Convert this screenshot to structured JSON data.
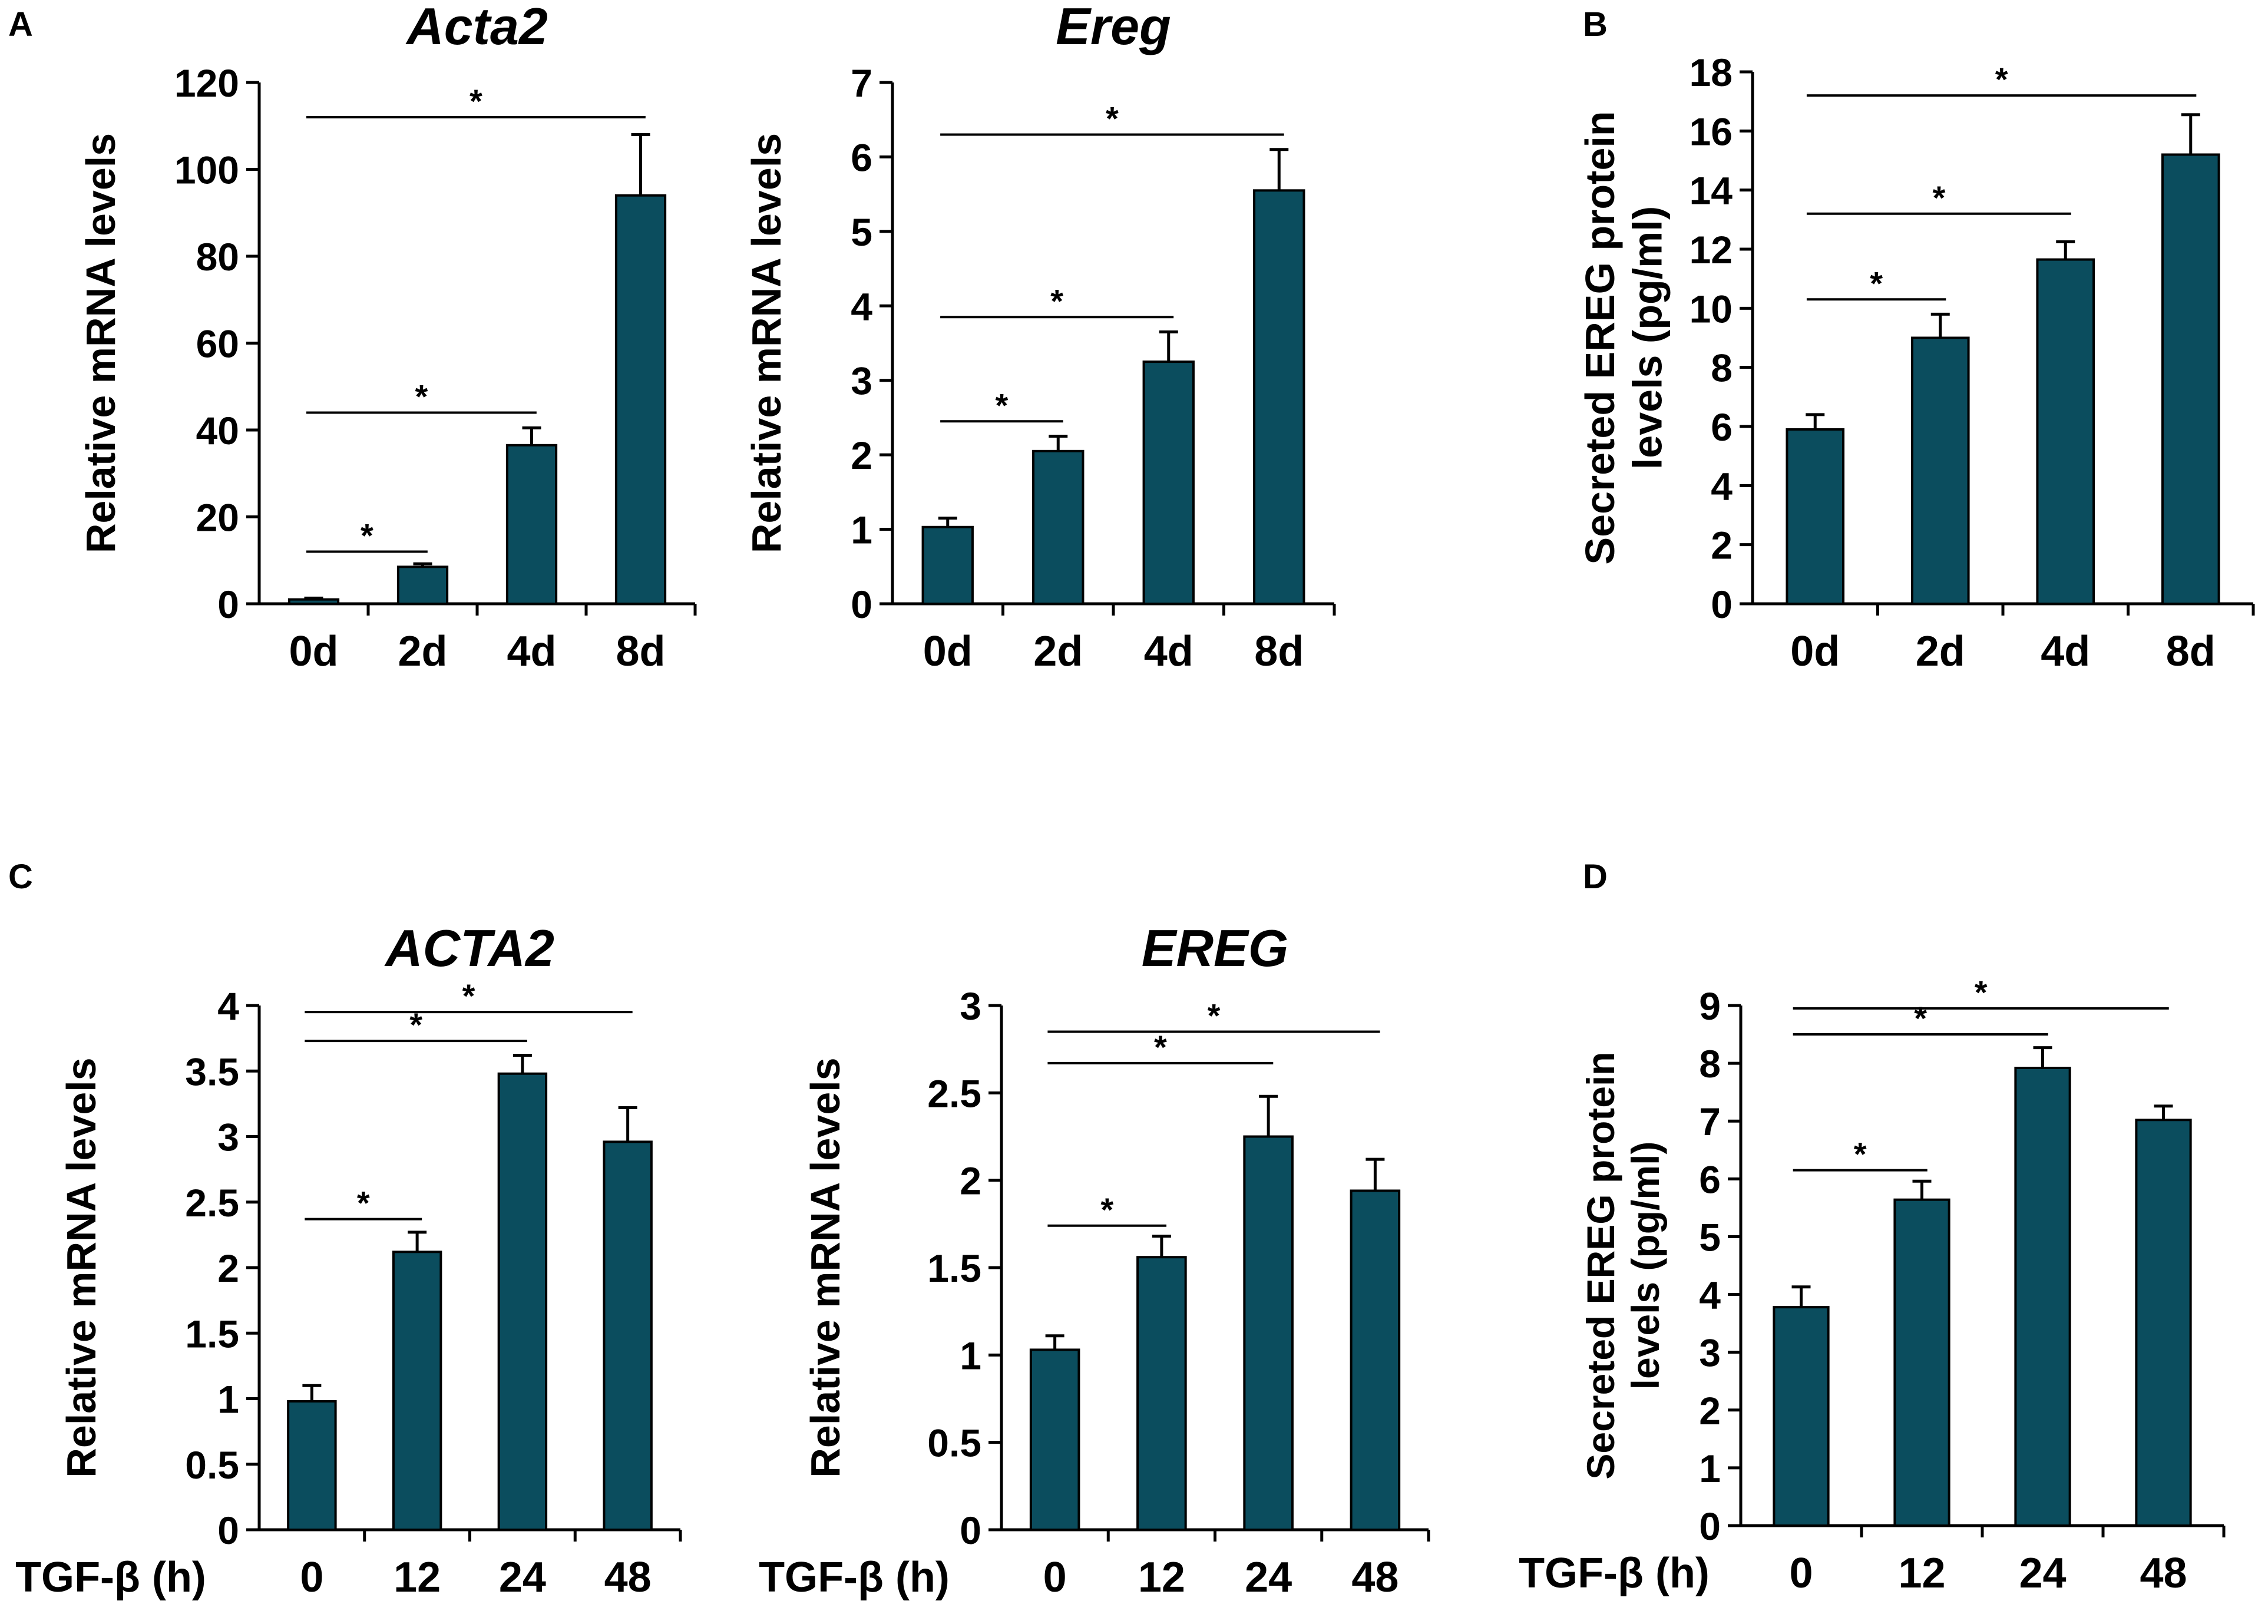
{
  "panels": [
    {
      "id": "A",
      "letter": "A"
    },
    {
      "id": "B",
      "letter": "B"
    },
    {
      "id": "C",
      "letter": "C"
    },
    {
      "id": "D",
      "letter": "D"
    }
  ],
  "colors": {
    "bar": "#0b4d5e",
    "axis": "#000000"
  },
  "chart_data": [
    {
      "panel": "A",
      "type": "bar",
      "title": "Acta2",
      "title_italic": true,
      "ylabel": "Relative mRNA levels",
      "xlabel": "",
      "categories": [
        "0d",
        "2d",
        "4d",
        "8d"
      ],
      "values": [
        1,
        8.5,
        36.5,
        94
      ],
      "errors": [
        0.3,
        0.7,
        4,
        14
      ],
      "ylim": [
        0,
        120
      ],
      "yticks": [
        0,
        20,
        40,
        60,
        80,
        100,
        120
      ],
      "significance": [
        {
          "from": 0,
          "to": 1,
          "label": "*",
          "y": 12
        },
        {
          "from": 0,
          "to": 2,
          "label": "*",
          "y": 44
        },
        {
          "from": 0,
          "to": 3,
          "label": "*",
          "y": 112
        }
      ]
    },
    {
      "panel": "A",
      "type": "bar",
      "title": "Ereg",
      "title_italic": true,
      "ylabel": "Relative mRNA levels",
      "xlabel": "",
      "categories": [
        "0d",
        "2d",
        "4d",
        "8d"
      ],
      "values": [
        1.03,
        2.05,
        3.25,
        5.55
      ],
      "errors": [
        0.12,
        0.2,
        0.4,
        0.55
      ],
      "ylim": [
        0,
        7
      ],
      "yticks": [
        0,
        1,
        2,
        3,
        4,
        5,
        6,
        7
      ],
      "significance": [
        {
          "from": 0,
          "to": 1,
          "label": "*",
          "y": 2.45
        },
        {
          "from": 0,
          "to": 2,
          "label": "*",
          "y": 3.85
        },
        {
          "from": 0,
          "to": 3,
          "label": "*",
          "y": 6.3
        }
      ]
    },
    {
      "panel": "B",
      "type": "bar",
      "title": "",
      "title_italic": false,
      "ylabel": "Secreted EREG protein levels (pg/ml)",
      "ylabel_lines": [
        "Secreted EREG protein",
        "levels (pg/ml)"
      ],
      "xlabel": "",
      "categories": [
        "0d",
        "2d",
        "4d",
        "8d"
      ],
      "values": [
        5.9,
        9.0,
        11.65,
        15.2
      ],
      "errors": [
        0.5,
        0.8,
        0.6,
        1.35
      ],
      "ylim": [
        0,
        18
      ],
      "yticks": [
        0,
        2,
        4,
        6,
        8,
        10,
        12,
        14,
        16,
        18
      ],
      "significance": [
        {
          "from": 0,
          "to": 1,
          "label": "*",
          "y": 10.3
        },
        {
          "from": 0,
          "to": 2,
          "label": "*",
          "y": 13.2
        },
        {
          "from": 0,
          "to": 3,
          "label": "*",
          "y": 17.2
        }
      ]
    },
    {
      "panel": "C",
      "type": "bar",
      "title": "ACTA2",
      "title_italic": true,
      "ylabel": "Relative mRNA levels",
      "xlabel": "TGF-β (h)",
      "categories": [
        "0",
        "12",
        "24",
        "48"
      ],
      "values": [
        0.98,
        2.12,
        3.48,
        2.96
      ],
      "errors": [
        0.12,
        0.15,
        0.14,
        0.26
      ],
      "ylim": [
        0,
        4
      ],
      "yticks": [
        0,
        0.5,
        1,
        1.5,
        2,
        2.5,
        3,
        3.5,
        4
      ],
      "significance": [
        {
          "from": 0,
          "to": 1,
          "label": "*",
          "y": 2.37
        },
        {
          "from": 0,
          "to": 2,
          "label": "*",
          "y": 3.73
        },
        {
          "from": 0,
          "to": 3,
          "label": "*",
          "y": 3.95
        }
      ]
    },
    {
      "panel": "C",
      "type": "bar",
      "title": "EREG",
      "title_italic": true,
      "ylabel": "Relative mRNA levels",
      "xlabel": "TGF-β (h)",
      "categories": [
        "0",
        "12",
        "24",
        "48"
      ],
      "values": [
        1.03,
        1.56,
        2.25,
        1.94
      ],
      "errors": [
        0.08,
        0.12,
        0.23,
        0.18
      ],
      "ylim": [
        0,
        3
      ],
      "yticks": [
        0,
        0.5,
        1,
        1.5,
        2,
        2.5,
        3
      ],
      "significance": [
        {
          "from": 0,
          "to": 1,
          "label": "*",
          "y": 1.74
        },
        {
          "from": 0,
          "to": 2,
          "label": "*",
          "y": 2.67
        },
        {
          "from": 0,
          "to": 3,
          "label": "*",
          "y": 2.85
        }
      ]
    },
    {
      "panel": "D",
      "type": "bar",
      "title": "",
      "title_italic": false,
      "ylabel": "Secreted EREG protein levels (pg/ml)",
      "ylabel_lines": [
        "Secreted EREG protein",
        "levels (pg/ml)"
      ],
      "xlabel": "TGF-β (h)",
      "categories": [
        "0",
        "12",
        "24",
        "48"
      ],
      "values": [
        3.78,
        5.64,
        7.92,
        7.02
      ],
      "errors": [
        0.35,
        0.32,
        0.35,
        0.24
      ],
      "ylim": [
        0,
        9
      ],
      "yticks": [
        0,
        1,
        2,
        3,
        4,
        5,
        6,
        7,
        8,
        9
      ],
      "significance": [
        {
          "from": 0,
          "to": 1,
          "label": "*",
          "y": 6.15
        },
        {
          "from": 0,
          "to": 2,
          "label": "*",
          "y": 8.5
        },
        {
          "from": 0,
          "to": 3,
          "label": "*",
          "y": 8.95
        }
      ]
    }
  ]
}
